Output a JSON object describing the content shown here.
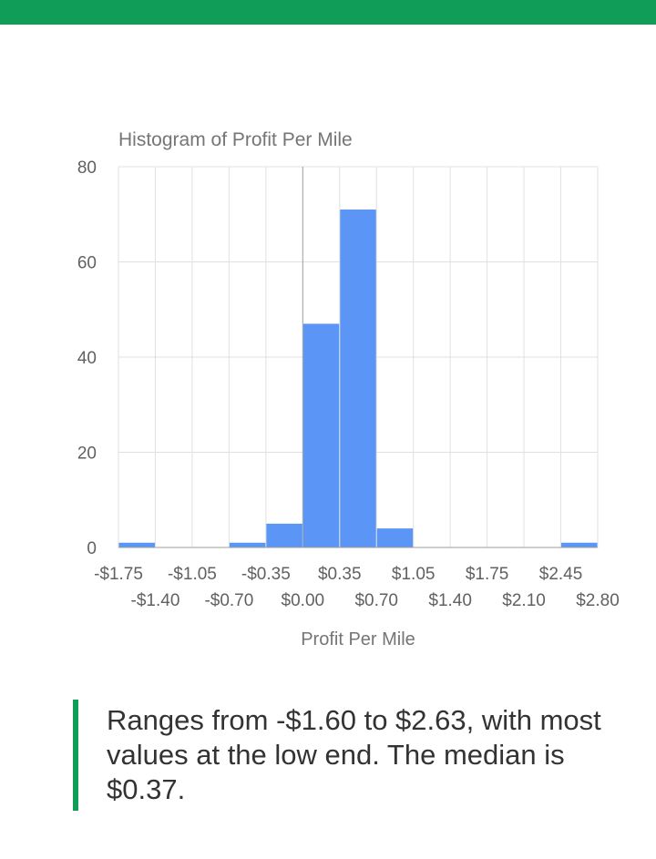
{
  "header": {
    "accent_color": "#0f9d58"
  },
  "chart_data": {
    "type": "bar",
    "title": "Histogram of Profit Per Mile",
    "xlabel": "Profit Per Mile",
    "ylabel": "",
    "ylim": [
      0,
      80
    ],
    "yticks": [
      0,
      20,
      40,
      60,
      80
    ],
    "xlim": [
      -1.75,
      2.8
    ],
    "bin_width": 0.35,
    "x_ticks_upper": [
      "-$1.75",
      "-$1.05",
      "-$0.35",
      "$0.35",
      "$1.05",
      "$1.75",
      "$2.45"
    ],
    "x_ticks_lower": [
      "-$1.40",
      "-$0.70",
      "$0.00",
      "$0.70",
      "$1.40",
      "$2.10",
      "$2.80"
    ],
    "bins": [
      {
        "start": -1.75,
        "end": -1.4,
        "count": 1
      },
      {
        "start": -1.4,
        "end": -1.05,
        "count": 0
      },
      {
        "start": -1.05,
        "end": -0.7,
        "count": 0
      },
      {
        "start": -0.7,
        "end": -0.35,
        "count": 1
      },
      {
        "start": -0.35,
        "end": 0.0,
        "count": 5
      },
      {
        "start": 0.0,
        "end": 0.35,
        "count": 47
      },
      {
        "start": 0.35,
        "end": 0.7,
        "count": 71
      },
      {
        "start": 0.7,
        "end": 1.05,
        "count": 4
      },
      {
        "start": 1.05,
        "end": 1.4,
        "count": 0
      },
      {
        "start": 1.4,
        "end": 1.75,
        "count": 0
      },
      {
        "start": 1.75,
        "end": 2.1,
        "count": 0
      },
      {
        "start": 2.1,
        "end": 2.45,
        "count": 0
      },
      {
        "start": 2.45,
        "end": 2.8,
        "count": 1
      }
    ],
    "bar_color": "#5b95f5",
    "grid": true,
    "legend": "none"
  },
  "callout": {
    "text": "Ranges from -$1.60 to $2.63, with most values at the low end. The median is $0.37.",
    "border_color": "#0f9d58"
  }
}
